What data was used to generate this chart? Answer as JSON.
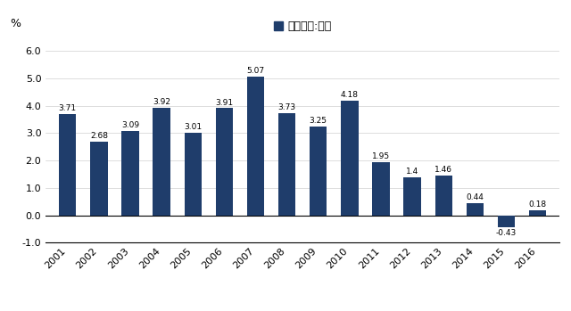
{
  "years": [
    2001,
    2002,
    2003,
    2004,
    2005,
    2006,
    2007,
    2008,
    2009,
    2010,
    2011,
    2012,
    2013,
    2014,
    2015,
    2016
  ],
  "values": [
    3.71,
    2.68,
    3.09,
    3.92,
    3.01,
    3.91,
    5.07,
    3.73,
    3.25,
    4.18,
    1.95,
    1.4,
    1.46,
    0.44,
    -0.43,
    0.18
  ],
  "bar_color": "#1F3D6B",
  "ylabel": "%",
  "legend_label": "人口增速:上海",
  "legend_marker_color": "#1F3D6B",
  "ylim_min": -1.0,
  "ylim_max": 6.5,
  "yticks": [
    -1.0,
    0.0,
    1.0,
    2.0,
    3.0,
    4.0,
    5.0,
    6.0
  ],
  "ytick_labels": [
    "-1.0",
    "0.0",
    "1.0",
    "2.0",
    "3.0",
    "4.0",
    "5.0",
    "6.0"
  ],
  "background_color": "#ffffff",
  "grid_color": "#d0d0d0",
  "label_fontsize": 6.5,
  "axis_fontsize": 8,
  "legend_fontsize": 9
}
